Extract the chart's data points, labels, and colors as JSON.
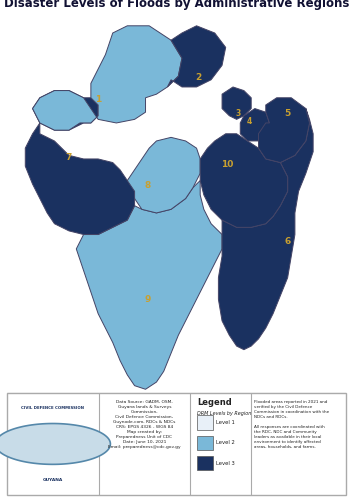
{
  "title": "Disaster Levels of Floods by Administrative Regions",
  "title_fontsize": 8.5,
  "background_color": "#ffffff",
  "map_ocean_color": "#b8d4e8",
  "level_colors": {
    "1": "#e8f0f8",
    "2": "#7ab8d8",
    "3": "#1a3160"
  },
  "legend_title": "Legend",
  "legend_subtitle": "DRM Levels by Region",
  "legend_labels": [
    "Level 1",
    "Level 2",
    "Level 3"
  ],
  "label_color": "#c8a030",
  "outer_border": "#444466",
  "footer_source": "Data Source: GADM, OSM,\nGuyana lands & Surveys\nCommission,\nCivil Defence Commission,\nGuynode.com, RDCs & NDCs\nCRS: EPGS 4326 - WGS 84\nMap created by:\nPreparedness Unit of CDC\nDate: June 10, 2021\nEmail: preparedness@cdc.gov.gy",
  "footer_right": "Flooded areas reported in 2021 and\nverified by the Civil Defence\nCommission in coordination with the\nNDCs and RDCs.\n\nAll responses are coordinated with\nthe RDC, NDC and Community\nleaders as available in their local\nenvironment to identify affected\nareas, households, and farms."
}
